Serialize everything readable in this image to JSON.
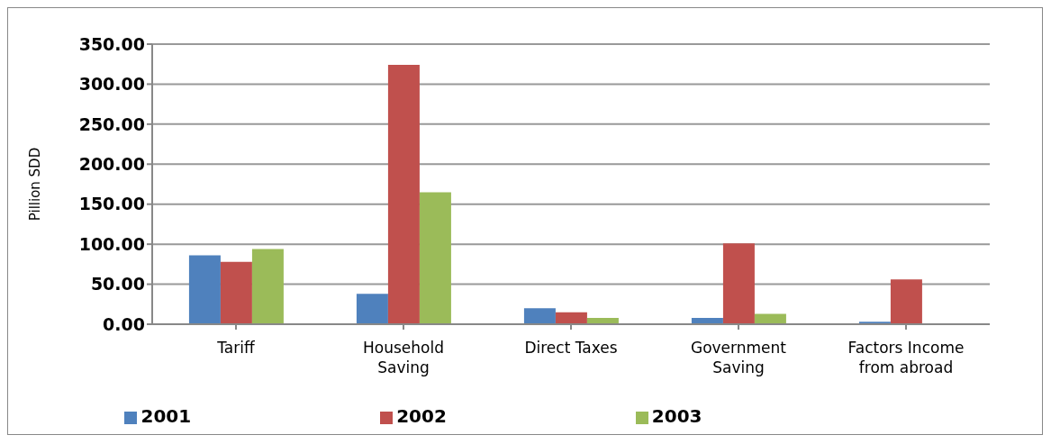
{
  "chart_data": {
    "type": "bar",
    "ylabel": "Pillion SDD",
    "categories": [
      "Tariff",
      "Household Saving",
      "Direct Taxes",
      "Government Saving",
      "Factors Income from abroad"
    ],
    "series": [
      {
        "name": "2001",
        "color": "#4f81bd",
        "values": [
          86,
          38,
          20,
          8,
          3
        ]
      },
      {
        "name": "2002",
        "color": "#c0504d",
        "values": [
          78,
          324,
          15,
          101,
          56
        ]
      },
      {
        "name": "2003",
        "color": "#9bbb59",
        "values": [
          94,
          165,
          8,
          13,
          null
        ]
      }
    ],
    "ylim": [
      0,
      350
    ],
    "yticks": [
      {
        "value": 0,
        "label": "0.00"
      },
      {
        "value": 50,
        "label": "50.00"
      },
      {
        "value": 100,
        "label": "100.00"
      },
      {
        "value": 150,
        "label": "150.00"
      },
      {
        "value": 200,
        "label": "200.00"
      },
      {
        "value": 250,
        "label": "250.00"
      },
      {
        "value": 300,
        "label": "300.00"
      },
      {
        "value": 350,
        "label": "350.00"
      }
    ],
    "grid": "y",
    "legend": "bottom"
  }
}
